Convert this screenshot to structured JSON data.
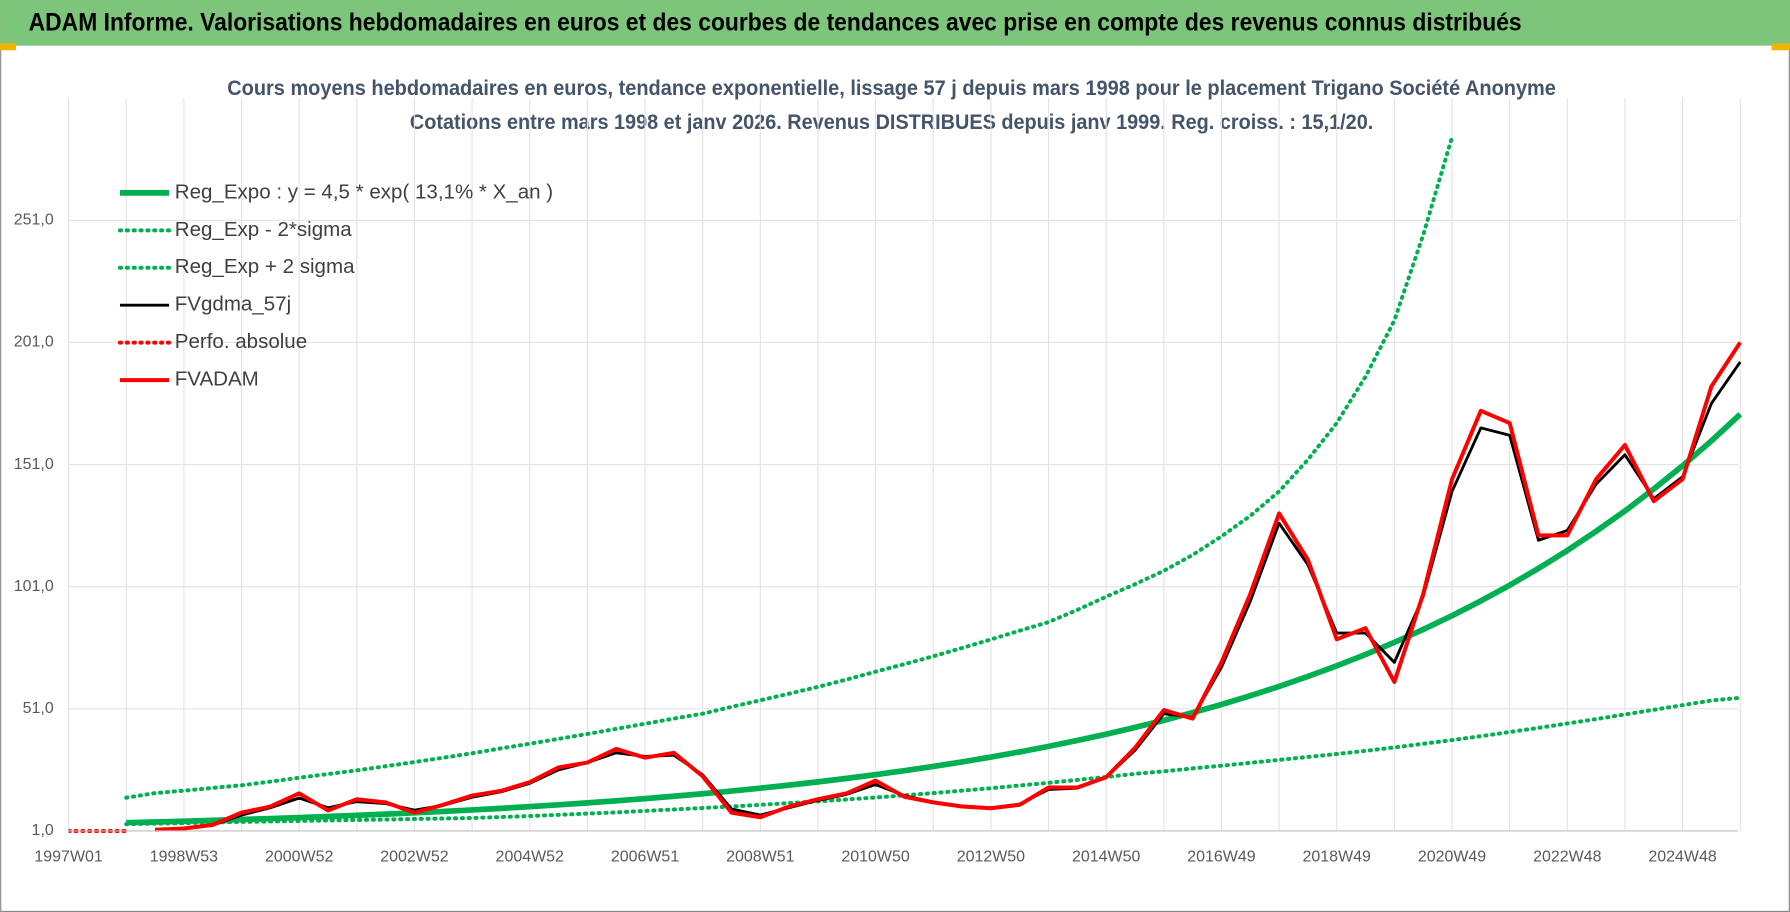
{
  "chart_data": {
    "type": "line",
    "title": "ADAM Informe. Valorisations hebdomadaires en euros et des courbes de tendances avec prise en compte des revenus connus distribués",
    "subtitle": [
      "Cours moyens hebdomadaires en euros, tendance exponentielle, lissage 57 j depuis mars 1998 pour le placement Trigano Société Anonyme",
      "Cotations entre mars 1998 et janv 2026. Revenus DISTRIBUES depuis janv 1999. Reg. croiss. : 15,1/20."
    ],
    "categories": [
      "1997W01",
      null,
      null,
      null,
      "1998W53",
      null,
      null,
      null,
      "2000W52",
      null,
      null,
      null,
      "2002W52",
      null,
      null,
      null,
      "2004W52",
      null,
      null,
      null,
      "2006W51",
      null,
      null,
      null,
      "2008W51",
      null,
      null,
      null,
      "2010W50",
      null,
      null,
      null,
      "2012W50",
      null,
      null,
      null,
      "2014W50",
      null,
      null,
      null,
      "2016W49",
      null,
      null,
      null,
      "2018W49",
      null,
      null,
      null,
      "2020W49",
      null,
      null,
      null,
      "2022W48",
      null,
      null,
      null,
      "2024W48",
      null,
      null
    ],
    "ylim": [
      1,
      301
    ],
    "yticks": [
      {
        "value": 1,
        "label": "1,0"
      },
      {
        "value": 51,
        "label": "51,0"
      },
      {
        "value": 101,
        "label": "101,0"
      },
      {
        "value": 151,
        "label": "151,0"
      },
      {
        "value": 201,
        "label": "201,0"
      },
      {
        "value": 251,
        "label": "251,0"
      }
    ],
    "grid": true,
    "legend": "top-left",
    "series": [
      {
        "name": "Reg_Expo : y = 4,5 * exp( 13,1% *  X_an )",
        "color": "#00b050",
        "style": "solid",
        "values": [
          null,
          null,
          4.38,
          4.68,
          5.0,
          5.33,
          5.69,
          6.08,
          6.49,
          6.93,
          7.4,
          7.9,
          8.43,
          9.0,
          9.61,
          10.26,
          10.96,
          11.7,
          12.49,
          13.34,
          14.24,
          15.2,
          16.23,
          17.33,
          18.51,
          19.76,
          21.1,
          22.53,
          24.05,
          25.68,
          27.42,
          29.27,
          31.25,
          33.37,
          35.63,
          38.04,
          40.62,
          43.37,
          46.3,
          49.44,
          52.78,
          56.36,
          60.17,
          64.25,
          68.6,
          73.24,
          78.2,
          83.49,
          89.14,
          95.18,
          101.6,
          108.5,
          115.8,
          123.7,
          132.0,
          141.0,
          150.5,
          160.7,
          171.6
        ]
      },
      {
        "name": "Reg_Exp - 2*sigma",
        "color": "#00b050",
        "style": "dotted",
        "values": [
          null,
          null,
          3.8,
          4.0,
          4.2,
          4.5,
          4.7,
          4.9,
          5.1,
          5.3,
          5.5,
          5.7,
          5.9,
          6.1,
          6.3,
          6.7,
          7.1,
          7.6,
          8.1,
          8.6,
          9.2,
          9.8,
          10.4,
          11.0,
          11.7,
          12.4,
          13.1,
          13.9,
          14.7,
          15.6,
          16.5,
          17.5,
          18.5,
          19.6,
          20.7,
          21.9,
          23.1,
          24.4,
          25.4,
          26.6,
          27.7,
          28.9,
          30.1,
          31.3,
          32.5,
          33.8,
          35.2,
          36.7,
          38.2,
          39.8,
          41.5,
          43.2,
          45.0,
          46.8,
          48.7,
          50.6,
          52.5,
          54.4,
          55.5
        ]
      },
      {
        "name": "Reg_Exp + 2 sigma",
        "color": "#00b050",
        "style": "dotted",
        "values": [
          null,
          null,
          14.6,
          16.5,
          17.5,
          18.6,
          19.7,
          21.2,
          22.8,
          24.3,
          25.8,
          27.5,
          29.2,
          31.0,
          32.8,
          34.8,
          36.7,
          38.7,
          40.7,
          42.8,
          44.9,
          47.0,
          49,
          51.8,
          54.5,
          57.2,
          60,
          63,
          66.2,
          69.3,
          72.5,
          75.9,
          79.4,
          83,
          86.5,
          91.5,
          96.9,
          102,
          107.5,
          114,
          121.6,
          130,
          140,
          153,
          168,
          187,
          210,
          245,
          285,
          null,
          null,
          null,
          null,
          null,
          null,
          null,
          null,
          null,
          null
        ]
      },
      {
        "name": "FVgdma_57j",
        "color": "#000000",
        "style": "solid",
        "values": [
          null,
          null,
          null,
          1.5,
          2,
          3.3,
          7.5,
          10.5,
          14.5,
          10.5,
          13,
          12.2,
          9.5,
          11.5,
          14.8,
          17,
          20.5,
          26,
          29,
          33,
          31.5,
          32,
          24,
          10,
          7.5,
          10.5,
          13.5,
          16,
          20,
          15.5,
          12.8,
          11.2,
          10.5,
          12,
          18,
          18.5,
          23,
          34,
          49,
          47.5,
          68,
          95,
          127,
          110,
          82,
          82,
          70,
          97,
          140,
          166,
          163,
          120,
          124,
          143,
          155,
          137,
          146,
          176,
          193
        ]
      },
      {
        "name": "Perfo. absolue",
        "color": "#ff0000",
        "style": "dotted",
        "values": [
          1,
          1,
          1,
          null,
          null,
          null,
          null,
          null,
          null,
          null,
          null,
          null,
          null,
          null,
          null,
          null,
          null,
          null,
          null,
          null,
          null,
          null,
          null,
          null,
          null,
          null,
          null,
          null,
          null,
          null,
          null,
          null,
          null,
          null,
          null,
          null,
          null,
          null,
          null,
          null,
          null,
          null,
          null,
          null,
          null,
          null,
          null,
          null,
          null,
          null,
          null,
          null,
          null,
          null,
          null,
          null,
          null,
          null,
          null
        ]
      },
      {
        "name": "FVADAM",
        "color": "#ff0000",
        "style": "solid",
        "values": [
          null,
          null,
          null,
          1.5,
          2,
          3.5,
          8.5,
          11,
          16.4,
          9.4,
          14,
          12.7,
          8.5,
          11.7,
          15.5,
          17.4,
          21,
          27,
          29,
          34.6,
          31,
          33,
          23.4,
          8.5,
          6.6,
          11,
          14,
          16.4,
          21.6,
          15,
          12.7,
          11,
          10.3,
          11.7,
          18.8,
          18.8,
          23,
          35,
          50.5,
          47,
          70,
          98,
          131,
          112,
          79.5,
          84,
          62,
          98,
          145,
          173,
          168,
          122,
          122,
          145,
          159,
          136,
          145,
          183,
          201
        ]
      }
    ]
  }
}
